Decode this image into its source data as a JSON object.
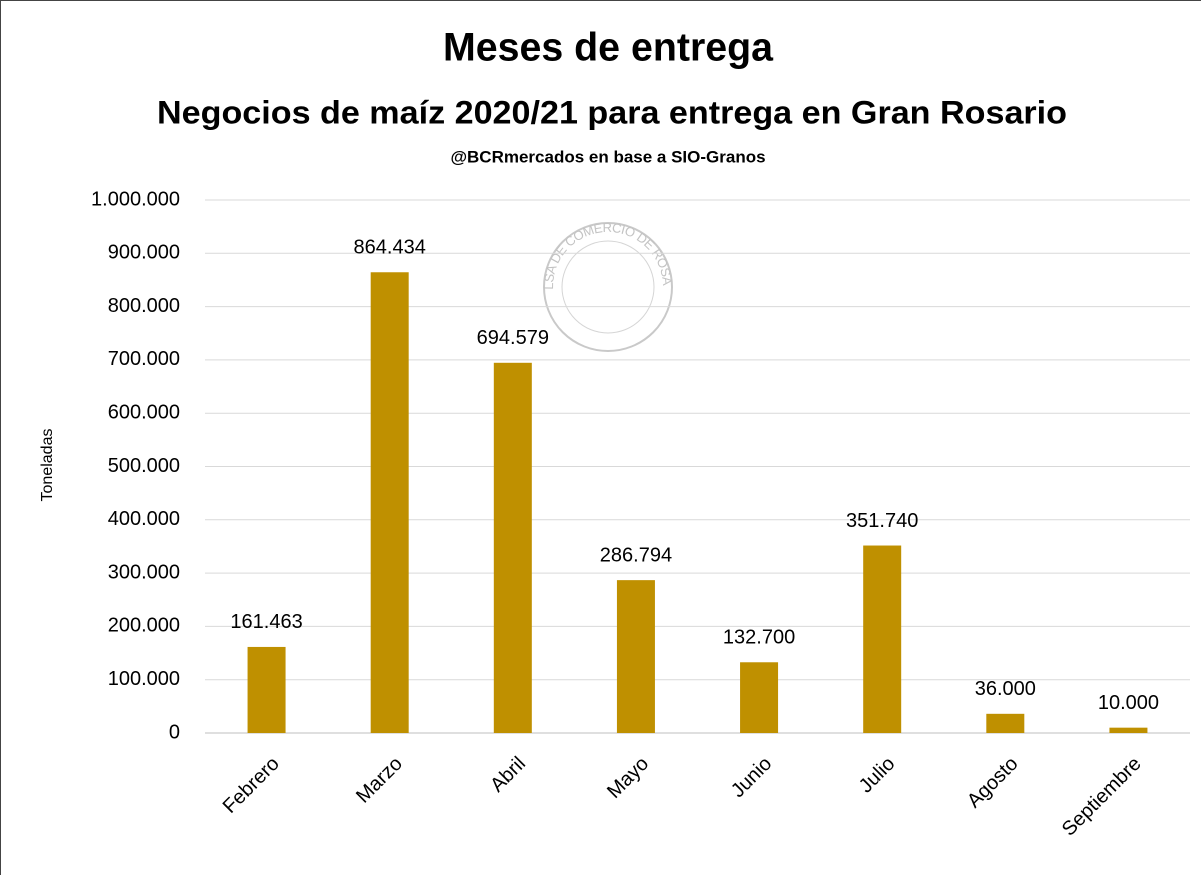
{
  "chart_data": {
    "type": "bar",
    "title": "Meses de entrega",
    "subtitle": "Negocios de maíz 2020/21 para entrega en Gran Rosario",
    "source": "@BCRmercados  en base a SIO-Granos",
    "watermark": "BOLSA DE COMERCIO DE ROSARIO",
    "y_axis_label": "Toneladas",
    "categories": [
      "Febrero",
      "Marzo",
      "Abril",
      "Mayo",
      "Junio",
      "Julio",
      "Agosto",
      "Septiembre"
    ],
    "values": [
      161463,
      864434,
      694579,
      286794,
      132700,
      351740,
      36000,
      10000
    ],
    "value_labels": [
      "161.463",
      "864.434",
      "694.579",
      "286.794",
      "132.700",
      "351.740",
      "36.000",
      "10.000"
    ],
    "color": "#bf9000",
    "ylim": [
      0,
      1000000
    ],
    "yticks": [
      0,
      {
        "value": 100000,
        "label": "100.000"
      },
      {
        "value": 200000,
        "label": "200.000"
      },
      {
        "value": 300000,
        "label": "300.000"
      },
      {
        "value": 400000,
        "label": "400.000"
      },
      {
        "value": 500000,
        "label": "500.000"
      },
      {
        "value": 600000,
        "label": "600.000"
      },
      {
        "value": 700000,
        "label": "700.000"
      },
      {
        "value": 800000,
        "label": "800.000"
      },
      {
        "value": 900000,
        "label": "900.000"
      },
      {
        "value": 1000000,
        "label": "1.000.000"
      }
    ],
    "grid": true
  }
}
